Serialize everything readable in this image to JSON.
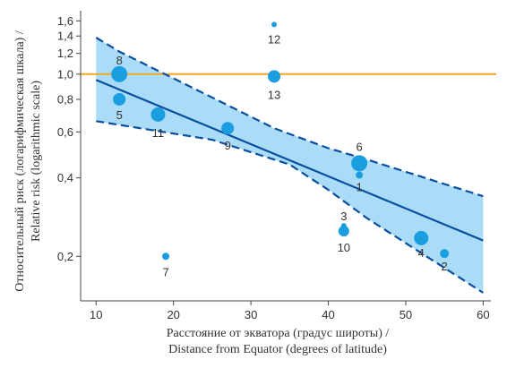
{
  "chart_data": {
    "type": "scatter",
    "xlabel_lines": [
      "Расстояние от экватора (градус широты) /",
      "Distance from Equator (degrees of latitude)"
    ],
    "ylabel_lines": [
      "Относительный риск (логарифмическая шкала) /",
      "Relative risk (logarithmic scale)"
    ],
    "x_ticks": [
      10,
      20,
      30,
      40,
      50,
      60
    ],
    "x_tick_labels": [
      "10",
      "20",
      "30",
      "40",
      "50",
      "60"
    ],
    "y_ticks": [
      0.2,
      0.4,
      0.6,
      0.8,
      1.0,
      1.2,
      1.4,
      1.6
    ],
    "y_tick_labels": [
      "0,2",
      "0,4",
      "0,6",
      "0,8",
      "1,0",
      "1,2",
      "1,4",
      "1,6"
    ],
    "y_scale": "log",
    "xlim": [
      8,
      61
    ],
    "ylim": [
      0.135,
      1.75
    ],
    "reference_line": {
      "y": 1.0,
      "color": "#f5a623"
    },
    "regression": {
      "color": "#0a4f9e",
      "line": [
        [
          10,
          0.95
        ],
        [
          60,
          0.23
        ]
      ],
      "ci_upper": [
        [
          10,
          1.38
        ],
        [
          13,
          1.22
        ],
        [
          22,
          0.9
        ],
        [
          33,
          0.62
        ],
        [
          40,
          0.52
        ],
        [
          45,
          0.47
        ],
        [
          60,
          0.34
        ]
      ],
      "ci_lower": [
        [
          10,
          0.66
        ],
        [
          25,
          0.56
        ],
        [
          35,
          0.45
        ],
        [
          40,
          0.36
        ],
        [
          45,
          0.28
        ],
        [
          60,
          0.145
        ]
      ],
      "band_color": "#aadcf7"
    },
    "points": [
      {
        "label": "1",
        "x": 44,
        "y": 0.41,
        "size": 4,
        "label_dx": 0,
        "label_dy": 14
      },
      {
        "label": "2",
        "x": 55,
        "y": 0.205,
        "size": 5,
        "label_dx": 0,
        "label_dy": 15
      },
      {
        "label": "3",
        "x": 42,
        "y": 0.262,
        "size": 3,
        "label_dx": 0,
        "label_dy": -10
      },
      {
        "label": "4",
        "x": 52,
        "y": 0.235,
        "size": 8,
        "label_dx": 0,
        "label_dy": 17
      },
      {
        "label": "5",
        "x": 13,
        "y": 0.8,
        "size": 7,
        "label_dx": 0,
        "label_dy": 18
      },
      {
        "label": "6",
        "x": 44,
        "y": 0.455,
        "size": 9,
        "label_dx": 0,
        "label_dy": -18
      },
      {
        "label": "7",
        "x": 19,
        "y": 0.2,
        "size": 4,
        "label_dx": 0,
        "label_dy": 18
      },
      {
        "label": "8",
        "x": 13,
        "y": 1.0,
        "size": 9,
        "label_dx": 0,
        "label_dy": -15
      },
      {
        "label": "9",
        "x": 27,
        "y": 0.62,
        "size": 7,
        "label_dx": 0,
        "label_dy": 20
      },
      {
        "label": "10",
        "x": 42,
        "y": 0.25,
        "size": 6,
        "label_dx": 0,
        "label_dy": 19
      },
      {
        "label": "11",
        "x": 18,
        "y": 0.7,
        "size": 8,
        "label_dx": 0,
        "label_dy": 21
      },
      {
        "label": "12",
        "x": 33,
        "y": 1.55,
        "size": 3,
        "label_dx": 0,
        "label_dy": 17
      },
      {
        "label": "13",
        "x": 33,
        "y": 0.98,
        "size": 7,
        "label_dx": 0,
        "label_dy": 21
      }
    ],
    "point_color": "#1a9ee0",
    "grid": false
  }
}
